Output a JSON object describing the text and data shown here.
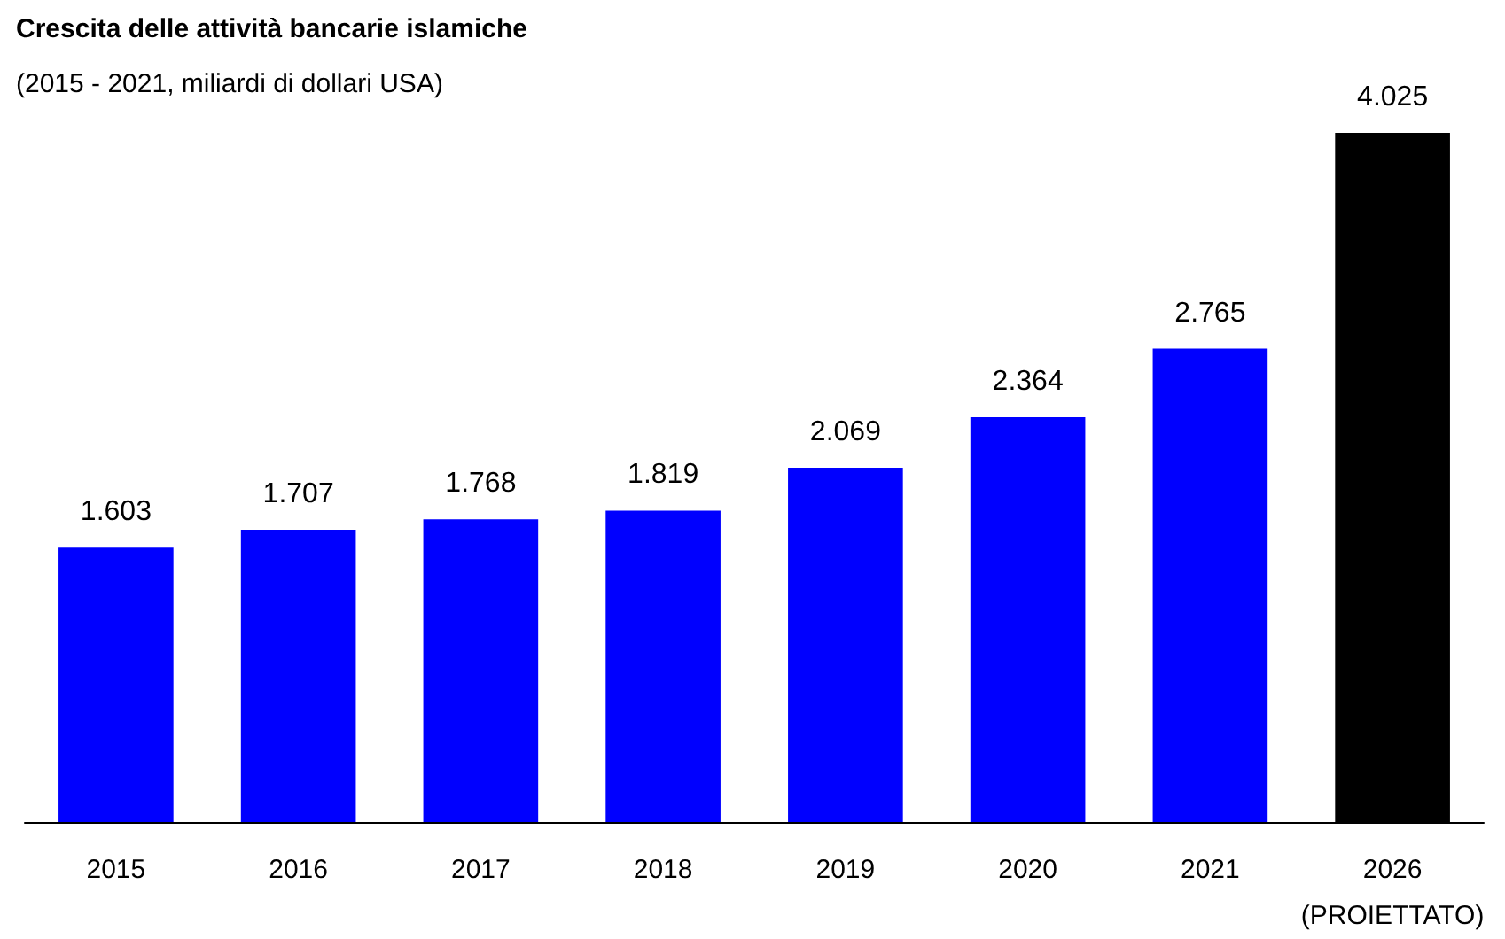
{
  "chart_data": {
    "type": "bar",
    "title": "Crescita delle attività bancarie islamiche",
    "subtitle": "(2015 - 2021, miliardi di dollari USA)",
    "categories": [
      "2015",
      "2016",
      "2017",
      "2018",
      "2019",
      "2020",
      "2021",
      "2026\n(PROIETTATO)"
    ],
    "values": [
      1603,
      1707,
      1768,
      1819,
      2069,
      2364,
      2765,
      4025
    ],
    "value_labels": [
      "1.603",
      "1.707",
      "1.768",
      "1.819",
      "2.069",
      "2.364",
      "2.765",
      "4.025"
    ],
    "colors": [
      "#0000ff",
      "#0000ff",
      "#0000ff",
      "#0000ff",
      "#0000ff",
      "#0000ff",
      "#0000ff",
      "#000000"
    ],
    "tick_labels": "x"
  }
}
